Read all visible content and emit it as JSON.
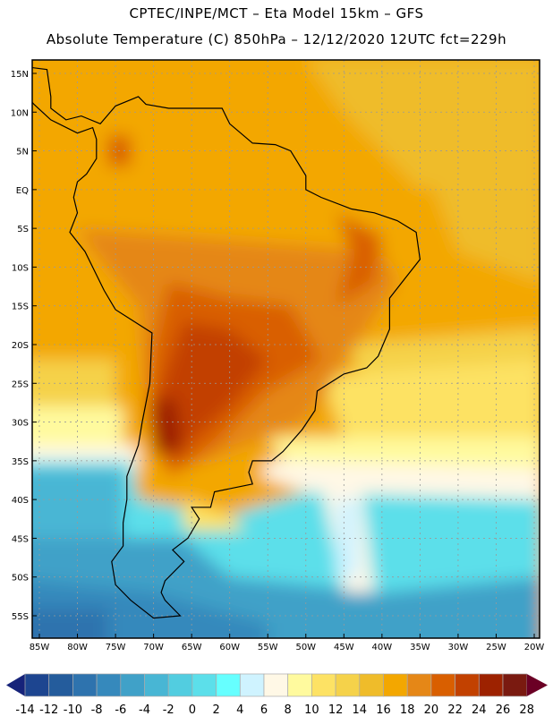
{
  "header": {
    "title": "CPTEC/INPE/MCT –  Eta Model 15km – GFS",
    "subtitle": "Absolute Temperature (C) 850hPa – 12/12/2020 12UTC fct=229h"
  },
  "axes": {
    "lat_labels": [
      "15N",
      "10N",
      "5N",
      "EQ",
      "5S",
      "10S",
      "15S",
      "20S",
      "25S",
      "30S",
      "35S",
      "40S",
      "45S",
      "50S",
      "55S"
    ],
    "lon_labels": [
      "85W",
      "80W",
      "75W",
      "70W",
      "65W",
      "60W",
      "55W",
      "50W",
      "45W",
      "40W",
      "35W",
      "30W",
      "25W",
      "20W"
    ]
  },
  "colorbar": {
    "labels": [
      "-14",
      "-12",
      "-10",
      "-8",
      "-6",
      "-4",
      "-2",
      "0",
      "2",
      "4",
      "6",
      "8",
      "10",
      "12",
      "14",
      "16",
      "18",
      "20",
      "22",
      "24",
      "26",
      "28"
    ],
    "colors": [
      "#1d4590",
      "#245c9c",
      "#2e73ae",
      "#3689bc",
      "#40a1c8",
      "#48b6d4",
      "#52cde0",
      "#5cdfea",
      "#66ffff",
      "#cff3ff",
      "#fff8e6",
      "#fffa9e",
      "#fde264",
      "#f5d24a",
      "#efbc2a",
      "#f3a700",
      "#e58717",
      "#d95f00",
      "#c24100",
      "#9d2200",
      "#7a1a10"
    ],
    "under_color": "#16237a",
    "over_color": "#6b0025"
  }
}
